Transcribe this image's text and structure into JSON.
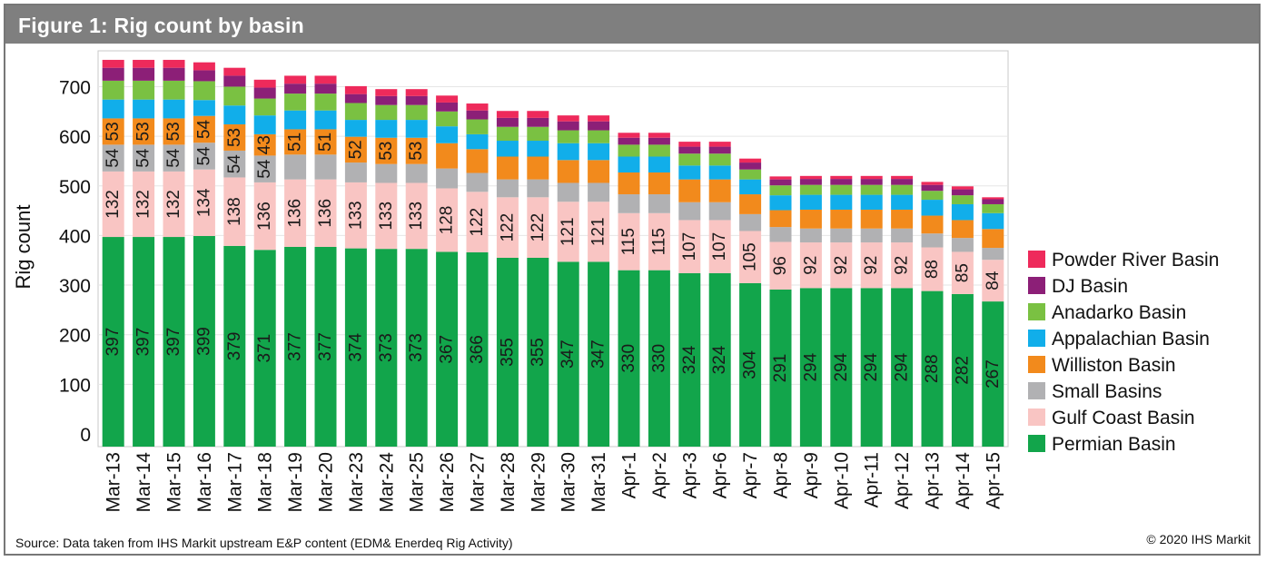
{
  "header": {
    "title": "Figure 1: Rig count by basin"
  },
  "footer": {
    "source": "Source: Data taken from IHS Markit upstream E&P content (EDM& Enerdeq Rig Activity)",
    "copyright": "© 2020 IHS Markit"
  },
  "colors": {
    "Powder River Basin": "#ee2a5b",
    "DJ Basin": "#8c1f77",
    "Anadarko Basin": "#7ac142",
    "Appalachian Basin": "#11aeea",
    "Williston Basin": "#f28a1c",
    "Small Basins": "#b1b1b3",
    "Gulf Coast Basin": "#f9c5c3",
    "Permian Basin": "#12a54b"
  },
  "chart_data": {
    "type": "bar",
    "stacked": true,
    "ylabel": "Rig count",
    "ylim": [
      0,
      770
    ],
    "yticks": [
      0,
      100,
      200,
      300,
      400,
      500,
      600,
      700
    ],
    "grid": true,
    "legend_position": "right",
    "categories": [
      "Mar-13",
      "Mar-14",
      "Mar-15",
      "Mar-16",
      "Mar-17",
      "Mar-18",
      "Mar-19",
      "Mar-20",
      "Mar-23",
      "Mar-24",
      "Mar-25",
      "Mar-26",
      "Mar-27",
      "Mar-28",
      "Mar-29",
      "Mar-30",
      "Mar-31",
      "Apr-1",
      "Apr-2",
      "Apr-3",
      "Apr-6",
      "Apr-7",
      "Apr-8",
      "Apr-9",
      "Apr-10",
      "Apr-11",
      "Apr-12",
      "Apr-13",
      "Apr-14",
      "Apr-15"
    ],
    "series": [
      {
        "name": "Permian Basin",
        "labeled": true,
        "values": [
          397,
          397,
          397,
          399,
          379,
          371,
          377,
          377,
          374,
          373,
          373,
          367,
          366,
          355,
          355,
          347,
          347,
          330,
          330,
          324,
          324,
          304,
          291,
          294,
          294,
          294,
          294,
          288,
          282,
          267
        ]
      },
      {
        "name": "Gulf Coast Basin",
        "labeled": true,
        "values": [
          132,
          132,
          132,
          134,
          138,
          136,
          136,
          136,
          133,
          133,
          133,
          128,
          122,
          122,
          122,
          121,
          121,
          115,
          115,
          107,
          107,
          105,
          96,
          92,
          92,
          92,
          92,
          88,
          85,
          84
        ]
      },
      {
        "name": "Small Basins",
        "labeled_count": 6,
        "values": [
          54,
          54,
          54,
          54,
          54,
          54,
          50,
          50,
          40,
          38,
          38,
          40,
          38,
          36,
          36,
          38,
          38,
          38,
          38,
          36,
          36,
          34,
          30,
          28,
          28,
          28,
          28,
          28,
          28,
          24
        ]
      },
      {
        "name": "Williston Basin",
        "labeled_count": 11,
        "values": [
          53,
          53,
          53,
          54,
          53,
          43,
          51,
          51,
          52,
          53,
          53,
          51,
          48,
          46,
          46,
          46,
          46,
          44,
          44,
          46,
          46,
          40,
          34,
          38,
          38,
          38,
          38,
          36,
          36,
          38
        ]
      },
      {
        "name": "Appalachian Basin",
        "values": [
          38,
          38,
          38,
          32,
          38,
          38,
          38,
          38,
          34,
          36,
          36,
          34,
          30,
          32,
          32,
          34,
          34,
          32,
          32,
          28,
          28,
          30,
          30,
          30,
          30,
          30,
          30,
          32,
          32,
          32
        ]
      },
      {
        "name": "Anadarko Basin",
        "values": [
          38,
          38,
          38,
          38,
          38,
          34,
          34,
          34,
          34,
          30,
          30,
          30,
          30,
          28,
          28,
          26,
          26,
          24,
          24,
          24,
          24,
          20,
          20,
          20,
          20,
          20,
          20,
          18,
          18,
          18
        ]
      },
      {
        "name": "DJ Basin",
        "values": [
          26,
          26,
          26,
          22,
          22,
          22,
          20,
          20,
          18,
          18,
          18,
          18,
          18,
          18,
          18,
          18,
          18,
          14,
          14,
          14,
          14,
          14,
          12,
          12,
          12,
          12,
          12,
          12,
          12,
          10
        ]
      },
      {
        "name": "Powder River Basin",
        "values": [
          16,
          16,
          16,
          16,
          16,
          16,
          16,
          16,
          16,
          14,
          14,
          14,
          14,
          14,
          14,
          12,
          12,
          10,
          10,
          10,
          10,
          8,
          6,
          6,
          6,
          6,
          6,
          6,
          6,
          4
        ]
      }
    ]
  }
}
